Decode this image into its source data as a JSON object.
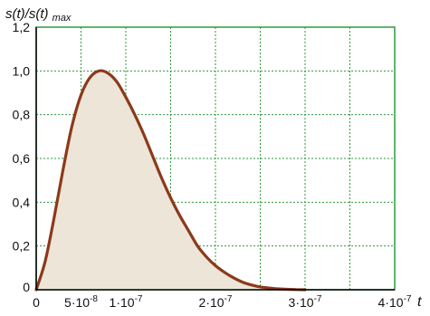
{
  "chart_data": {
    "type": "area",
    "ylabel": {
      "main": "s(t)/s(t)",
      "sub": "max"
    },
    "xlabel": "t",
    "xlim": [
      0,
      4e-07
    ],
    "ylim": [
      0,
      1.2
    ],
    "grid": true,
    "x_ticks": [
      {
        "value": 0,
        "base": "0",
        "exp": ""
      },
      {
        "value": 5e-08,
        "base": "5·10",
        "exp": "-8"
      },
      {
        "value": 1e-07,
        "base": "1·10",
        "exp": "-7"
      },
      {
        "value": 2e-07,
        "base": "2·10",
        "exp": "-7"
      },
      {
        "value": 3e-07,
        "base": "3·10",
        "exp": "-7"
      },
      {
        "value": 4e-07,
        "base": "4·10",
        "exp": "-7"
      }
    ],
    "y_ticks": [
      {
        "value": 0,
        "label": "0"
      },
      {
        "value": 0.2,
        "label": "0,2"
      },
      {
        "value": 0.4,
        "label": "0,4"
      },
      {
        "value": 0.6,
        "label": "0,6"
      },
      {
        "value": 0.8,
        "label": "0,8"
      },
      {
        "value": 1.0,
        "label": "1,0"
      },
      {
        "value": 1.2,
        "label": "1,2"
      }
    ],
    "series": [
      {
        "x": [
          0,
          1e-08,
          2e-08,
          3e-08,
          4e-08,
          5e-08,
          6e-08,
          7e-08,
          8e-08,
          9e-08,
          1e-07,
          1.1e-07,
          1.2e-07,
          1.3e-07,
          1.4e-07,
          1.5e-07,
          1.6e-07,
          1.7e-07,
          1.8e-07,
          1.9e-07,
          2e-07,
          2.1e-07,
          2.2e-07,
          2.3e-07,
          2.4e-07,
          2.5e-07,
          2.6e-07,
          2.7e-07,
          2.8e-07,
          2.9e-07,
          3e-07
        ],
        "y": [
          0,
          0.13,
          0.33,
          0.55,
          0.75,
          0.89,
          0.97,
          1.0,
          0.99,
          0.95,
          0.88,
          0.8,
          0.71,
          0.61,
          0.51,
          0.42,
          0.34,
          0.27,
          0.2,
          0.15,
          0.11,
          0.08,
          0.055,
          0.035,
          0.022,
          0.013,
          0.008,
          0.004,
          0.002,
          0.001,
          0
        ]
      }
    ],
    "colors": {
      "curve": "#8b3a1a",
      "fill": "#ece5d8",
      "grid": "#2e9a3e",
      "border": "#2e9a3e",
      "axis": "#000000"
    }
  }
}
